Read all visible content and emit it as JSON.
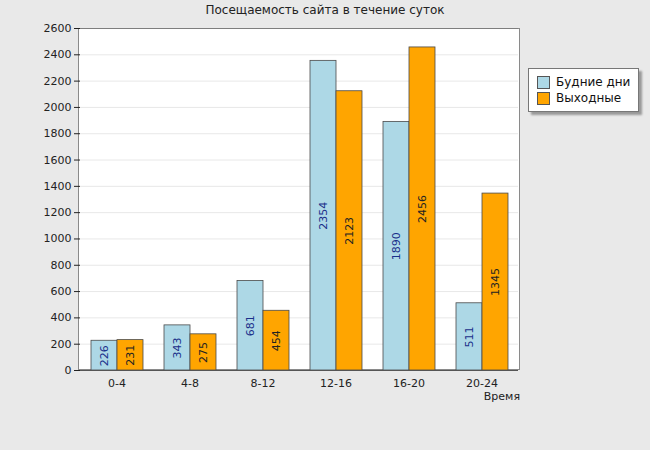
{
  "chart_data": {
    "type": "bar",
    "title": "Посещаемость сайта в течение суток",
    "x_label": "Время",
    "categories": [
      "0-4",
      "4-8",
      "8-12",
      "12-16",
      "16-20",
      "20-24"
    ],
    "series": [
      {
        "name": "Будние дни",
        "color": "#add8e6",
        "values": [
          226,
          343,
          681,
          2354,
          1890,
          511
        ]
      },
      {
        "name": "Выходные",
        "color": "#ffa500",
        "values": [
          231,
          275,
          454,
          2123,
          2456,
          1345
        ]
      }
    ],
    "ylim": [
      0,
      2600
    ],
    "yticks": [
      0,
      200,
      400,
      600,
      800,
      1000,
      1200,
      1400,
      1600,
      1800,
      2000,
      2200,
      2400,
      2600
    ],
    "grid": true,
    "legend": "top-right",
    "data_labels": true
  }
}
